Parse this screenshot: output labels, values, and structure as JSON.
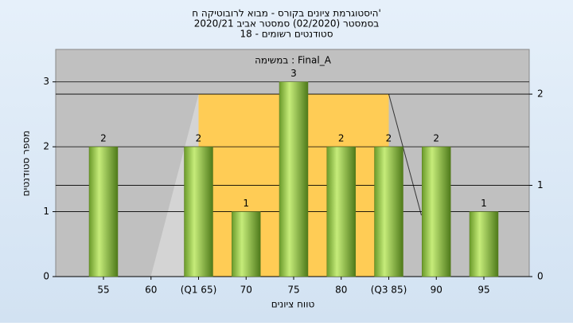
{
  "chart_data": {
    "type": "bar",
    "title": [
      "היסטוגרמת ציונים בקורס - מבוא לרובוטיקה ח'",
      "בסמסטר  (02/2020)  סמסטר אביב 2020/21",
      "סטודנטים רשומים - 18"
    ],
    "annotation": "במשימה : Final_A",
    "x_label": "טווח ציונים",
    "y_label": "מספר סטודנטים",
    "categories": [
      "55",
      "60",
      "(Q1 65)",
      "70",
      "75",
      "80",
      "(Q3 85)",
      "90",
      "95"
    ],
    "values": [
      2,
      0,
      2,
      1,
      3,
      2,
      2,
      2,
      1
    ],
    "value_labels": [
      "2",
      null,
      "2",
      "1",
      "3",
      "2",
      "2",
      "2",
      "1"
    ],
    "color": "#9ccc44",
    "box": {
      "value": 2,
      "axis": "y2",
      "color": "#ffcc55"
    },
    "ylim": [
      0,
      3.5
    ],
    "yticks": [
      0,
      1,
      2,
      3
    ],
    "y2lim": [
      0,
      2.49
    ],
    "y2ticks": [
      0,
      1,
      2
    ],
    "grid": true
  }
}
